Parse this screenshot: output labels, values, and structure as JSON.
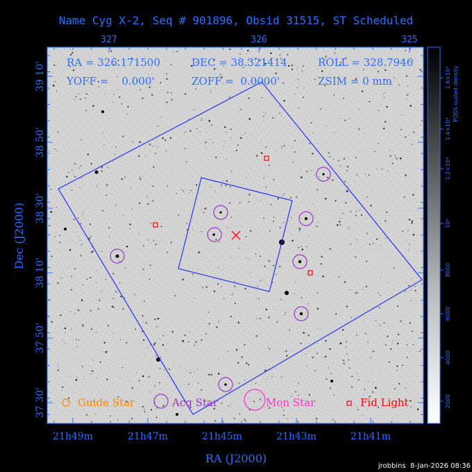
{
  "title": "Name Cyg X-2, Seq # 901896, Obsid 31515, ST Scheduled",
  "top_ra_ticks": [
    "327",
    "326",
    "325"
  ],
  "bottom_ra_ticks": [
    "21h49m",
    "21h47m",
    "21h45m",
    "21h43m",
    "21h41m"
  ],
  "dec_ticks": [
    "39 10'",
    "38 50'",
    "38 30'",
    "38 10'",
    "37 50'",
    "37 30'"
  ],
  "xlabel": "RA (J2000)",
  "ylabel": "Dec (J2000)",
  "info": {
    "ra": "RA = 326.171500",
    "dec": "DEC = 38.321414",
    "roll": "ROLL = 328.7946",
    "yoff": "YOFF =    0.000'",
    "zoff": "ZOFF =  0.0000'",
    "zsim": "ZSIM = 0 mm"
  },
  "legend": {
    "guide": "Guide Star",
    "acq": "Acq Star",
    "mon": "Mon Star",
    "fid": "Fid Light"
  },
  "colorbar": {
    "label": "POSS scaled density",
    "ticks": [
      "2000",
      "4000",
      "6000",
      "8000",
      "10⁴",
      "1.2×10⁴",
      "1.4×10⁴",
      "1.6×10⁴"
    ]
  },
  "footer": "jrobbins  8-Jan-2026 08:36",
  "colors": {
    "axis": "#2a6fff",
    "acq": "#9933cc",
    "guide": "#ff8800",
    "mon": "#ff33cc",
    "fid": "#ff0000"
  }
}
